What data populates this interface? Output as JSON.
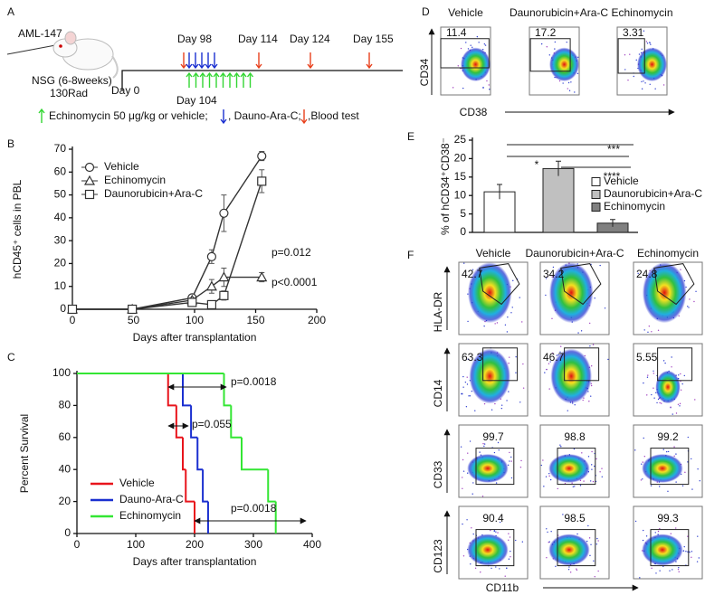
{
  "panel_a": {
    "letter": "A",
    "cell_line": "AML-147",
    "mouse": "NSG (6-8weeks)",
    "irradiation": "130Rad",
    "day_labels": [
      "Day 0",
      "Day 98",
      "Day 104",
      "Day 114",
      "Day 124",
      "Day 155"
    ],
    "legend": {
      "treatment": "Echinomycin 50 μg/kg or vehicle;",
      "chemo": ", Dauno-Ara-C;",
      "blood": ",Blood test"
    }
  },
  "chart_data": [
    {
      "type": "line",
      "panel": "B",
      "x_label": "Days after transplantation",
      "y_label": "hCD45⁺ cells in PBL",
      "xlim": [
        0,
        200
      ],
      "xticks": [
        0,
        50,
        100,
        150,
        200
      ],
      "ylim": [
        0,
        70
      ],
      "yticks": [
        0,
        10,
        20,
        30,
        40,
        50,
        60,
        70
      ],
      "legend": "upper left",
      "series": [
        {
          "name": "Vehicle",
          "marker": "circle",
          "color": "#333333",
          "x": [
            0,
            49,
            98,
            114,
            124,
            155
          ],
          "values": [
            0,
            0,
            5,
            23,
            42,
            67
          ],
          "errors": [
            0,
            0,
            1,
            3,
            8,
            2
          ]
        },
        {
          "name": "Echinomycin",
          "marker": "triangle",
          "color": "#333333",
          "x": [
            0,
            49,
            98,
            114,
            124,
            155
          ],
          "values": [
            0,
            0,
            4,
            10,
            14,
            14
          ],
          "errors": [
            0,
            0,
            1,
            3,
            4,
            2
          ]
        },
        {
          "name": "Daunorubicin+Ara-C",
          "marker": "square",
          "color": "#333333",
          "x": [
            0,
            49,
            98,
            114,
            124,
            155
          ],
          "values": [
            0,
            0,
            3,
            2,
            6,
            56
          ],
          "errors": [
            0,
            0,
            1,
            1,
            2,
            5
          ]
        }
      ],
      "annotations": [
        "p=0.012",
        "p<0.0001"
      ]
    },
    {
      "type": "step",
      "panel": "C",
      "x_label": "Days after transplantation",
      "y_label": "Percent Survival",
      "xlim": [
        0,
        400
      ],
      "xticks": [
        0,
        100,
        200,
        300,
        400
      ],
      "ylim": [
        0,
        100
      ],
      "yticks": [
        0,
        20,
        40,
        60,
        80,
        100
      ],
      "legend": "lower left",
      "series": [
        {
          "name": "Vehicle",
          "color": "#e8141c",
          "x": [
            0,
            155,
            169,
            180,
            185,
            200
          ],
          "values": [
            100,
            80,
            60,
            40,
            20,
            0
          ]
        },
        {
          "name": "Dauno-Ara-C",
          "color": "#1a2fd0",
          "x": [
            0,
            180,
            194,
            205,
            214,
            223
          ],
          "values": [
            100,
            80,
            60,
            40,
            20,
            0
          ]
        },
        {
          "name": "Echinomycin",
          "color": "#33e633",
          "x": [
            0,
            250,
            262,
            280,
            325,
            338
          ],
          "values": [
            100,
            80,
            60,
            40,
            20,
            0
          ]
        }
      ],
      "annotations": [
        "p=0.0018",
        "p=0.055",
        "p=0.0018"
      ]
    },
    {
      "type": "bar",
      "panel": "E",
      "y_label": "% of hCD34⁺CD38⁻",
      "categories": [
        "Vehicle",
        "Daunorubicin+Ara-C",
        "Echinomycin"
      ],
      "values": [
        11,
        17.3,
        2.5
      ],
      "errors": [
        2,
        2,
        1
      ],
      "colors": [
        "#ffffff",
        "#c0c0c0",
        "#808080"
      ],
      "ylim": [
        0,
        25
      ],
      "yticks": [
        0,
        5,
        10,
        15,
        20,
        25
      ],
      "legend": "right",
      "significance": [
        "*",
        "***",
        "****"
      ]
    }
  ],
  "panel_d": {
    "letter": "D",
    "columns": [
      "Vehicle",
      "Daunorubicin+Ara-C",
      "Echinomycin"
    ],
    "gates": [
      11.4,
      17.2,
      3.31
    ],
    "y_axis": "CD34",
    "x_axis": "CD38"
  },
  "panel_f": {
    "letter": "F",
    "columns": [
      "Vehicle",
      "Daunorubicin+Ara-C",
      "Echinomycin"
    ],
    "x_axis": "CD11b",
    "rows": [
      {
        "marker": "HLA-DR",
        "values": [
          42.7,
          34.2,
          24.8
        ]
      },
      {
        "marker": "CD14",
        "values": [
          63.3,
          46.7,
          5.55
        ]
      },
      {
        "marker": "CD33",
        "values": [
          99.7,
          98.8,
          99.2
        ]
      },
      {
        "marker": "CD123",
        "values": [
          90.4,
          98.5,
          99.3
        ]
      }
    ]
  }
}
